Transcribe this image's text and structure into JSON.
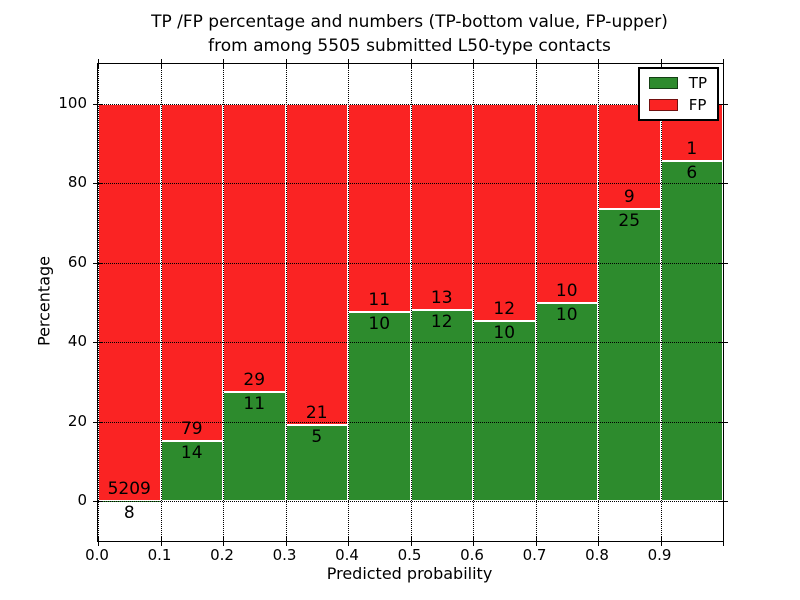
{
  "title": {
    "line1": "TP /FP percentage and numbers (TP-bottom value, FP-upper)",
    "line2": "from among 5505 submitted L50-type contacts"
  },
  "axes": {
    "xlabel": "Predicted probability",
    "ylabel": "Percentage",
    "x_tick_labels": [
      "0.0",
      "0.1",
      "0.2",
      "0.3",
      "0.4",
      "0.5",
      "0.6",
      "0.7",
      "0.8",
      "0.9"
    ],
    "y_tick_labels": [
      "0",
      "20",
      "40",
      "60",
      "80",
      "100"
    ],
    "y_tick_values": [
      0,
      20,
      40,
      60,
      80,
      100
    ],
    "xlim": [
      0.0,
      1.0
    ],
    "ylim": [
      -10,
      110
    ],
    "grid": "dotted"
  },
  "legend": {
    "position": "upper-right",
    "items": [
      {
        "label": "TP",
        "color": "#2d8b2d"
      },
      {
        "label": "FP",
        "color": "#fa2323"
      }
    ]
  },
  "chart_data": {
    "type": "bar",
    "stacked": true,
    "normalized": "percent-of-bin",
    "title": "TP /FP percentage and numbers (TP-bottom value, FP-upper) from among 5505 submitted L50-type contacts",
    "xlabel": "Predicted probability",
    "ylabel": "Percentage",
    "bin_edges": [
      0.0,
      0.1,
      0.2,
      0.3,
      0.4,
      0.5,
      0.6,
      0.7,
      0.8,
      0.9,
      1.0
    ],
    "series": [
      {
        "name": "TP",
        "color": "#2d8b2d",
        "counts": [
          8,
          14,
          11,
          5,
          10,
          12,
          10,
          10,
          25,
          6
        ]
      },
      {
        "name": "FP",
        "color": "#fa2323",
        "counts": [
          5209,
          79,
          29,
          21,
          11,
          13,
          12,
          10,
          9,
          1
        ]
      }
    ],
    "tp_percent": [
      0.15,
      15.05,
      27.5,
      19.23,
      47.62,
      48.0,
      45.45,
      50.0,
      73.53,
      85.71
    ],
    "total_contacts": 5505,
    "ylim": [
      -10,
      110
    ],
    "legend_position": "upper-right",
    "grid": "dotted"
  }
}
